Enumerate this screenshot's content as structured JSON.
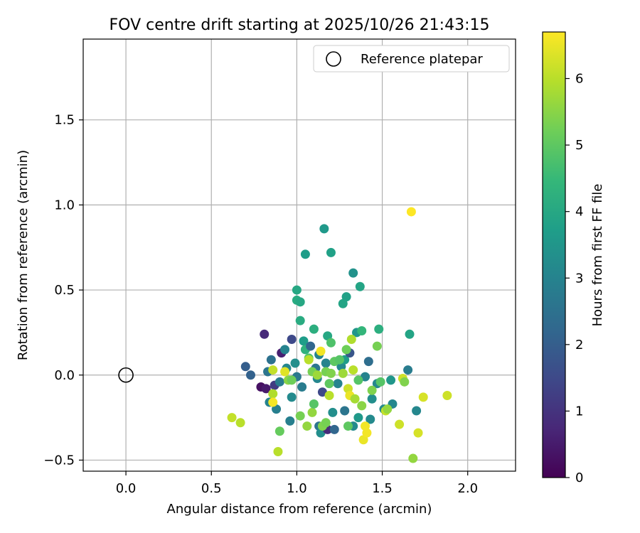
{
  "chart_data": {
    "type": "scatter",
    "title": "FOV centre drift starting at 2025/10/26 21:43:15",
    "xlabel": "Angular distance from reference (arcmin)",
    "ylabel": "Rotation from reference (arcmin)",
    "xlim": [
      -0.25,
      2.28
    ],
    "ylim": [
      -0.565,
      1.975
    ],
    "x_ticks": [
      0.0,
      0.5,
      1.0,
      1.5,
      2.0
    ],
    "x_tick_labels": [
      "0.0",
      "0.5",
      "1.0",
      "1.5",
      "2.0"
    ],
    "y_ticks": [
      -0.5,
      0.0,
      0.5,
      1.0,
      1.5
    ],
    "y_tick_labels": [
      "−0.5",
      "0.0",
      "0.5",
      "1.0",
      "1.5"
    ],
    "grid": true,
    "legend": {
      "label": "Reference platepar",
      "placement": "top-right"
    },
    "reference_point": {
      "x": 0.0,
      "y": 0.0
    },
    "colorbar": {
      "label": "Hours from first FF file",
      "min": 0,
      "max": 6.7,
      "ticks": [
        0,
        1,
        2,
        3,
        4,
        5,
        6
      ],
      "tick_labels": [
        "0",
        "1",
        "2",
        "3",
        "4",
        "5",
        "6"
      ],
      "colormap": [
        "#440154",
        "#482878",
        "#3e4989",
        "#31688e",
        "#26828e",
        "#1f9e89",
        "#35b779",
        "#6ece58",
        "#b5de2b",
        "#fde725"
      ]
    },
    "points": [
      {
        "x": 0.81,
        "y": 0.24,
        "h": 0.8
      },
      {
        "x": 0.7,
        "y": 0.05,
        "h": 2.0
      },
      {
        "x": 0.73,
        "y": 0.0,
        "h": 2.1
      },
      {
        "x": 0.79,
        "y": -0.07,
        "h": 0.3
      },
      {
        "x": 0.82,
        "y": -0.08,
        "h": 0.5
      },
      {
        "x": 0.83,
        "y": 0.02,
        "h": 2.6
      },
      {
        "x": 0.85,
        "y": 0.09,
        "h": 2.5
      },
      {
        "x": 0.84,
        "y": -0.16,
        "h": 3.0
      },
      {
        "x": 0.87,
        "y": -0.06,
        "h": 1.2
      },
      {
        "x": 0.88,
        "y": -0.2,
        "h": 2.9
      },
      {
        "x": 0.9,
        "y": -0.04,
        "h": 2.8
      },
      {
        "x": 0.91,
        "y": 0.13,
        "h": 0.6
      },
      {
        "x": 0.93,
        "y": 0.15,
        "h": 3.0
      },
      {
        "x": 0.94,
        "y": 0.04,
        "h": 3.1
      },
      {
        "x": 0.97,
        "y": 0.21,
        "h": 1.5
      },
      {
        "x": 0.97,
        "y": -0.13,
        "h": 3.2
      },
      {
        "x": 0.96,
        "y": -0.27,
        "h": 2.9
      },
      {
        "x": 0.99,
        "y": 0.07,
        "h": 3.3
      },
      {
        "x": 1.0,
        "y": -0.01,
        "h": 2.7
      },
      {
        "x": 1.03,
        "y": -0.07,
        "h": 2.8
      },
      {
        "x": 1.05,
        "y": 0.71,
        "h": 3.7
      },
      {
        "x": 1.0,
        "y": 0.5,
        "h": 4.0
      },
      {
        "x": 1.0,
        "y": 0.44,
        "h": 4.1
      },
      {
        "x": 1.02,
        "y": 0.43,
        "h": 4.0
      },
      {
        "x": 1.02,
        "y": 0.32,
        "h": 4.1
      },
      {
        "x": 1.04,
        "y": 0.2,
        "h": 3.7
      },
      {
        "x": 1.05,
        "y": 0.15,
        "h": 4.3
      },
      {
        "x": 1.07,
        "y": 0.1,
        "h": 4.8
      },
      {
        "x": 1.08,
        "y": 0.17,
        "h": 2.2
      },
      {
        "x": 1.1,
        "y": 0.27,
        "h": 4.2
      },
      {
        "x": 1.11,
        "y": 0.04,
        "h": 2.6
      },
      {
        "x": 1.12,
        "y": -0.02,
        "h": 3.1
      },
      {
        "x": 1.13,
        "y": 0.12,
        "h": 3.0
      },
      {
        "x": 1.16,
        "y": 0.86,
        "h": 3.6
      },
      {
        "x": 1.2,
        "y": 0.72,
        "h": 3.8
      },
      {
        "x": 1.18,
        "y": 0.23,
        "h": 4.0
      },
      {
        "x": 1.2,
        "y": 0.19,
        "h": 4.8
      },
      {
        "x": 1.17,
        "y": 0.07,
        "h": 3.0
      },
      {
        "x": 1.15,
        "y": -0.1,
        "h": 1.5
      },
      {
        "x": 1.13,
        "y": -0.3,
        "h": 2.6
      },
      {
        "x": 1.14,
        "y": -0.34,
        "h": 3.3
      },
      {
        "x": 1.18,
        "y": -0.32,
        "h": 0.8
      },
      {
        "x": 1.21,
        "y": -0.22,
        "h": 3.3
      },
      {
        "x": 1.22,
        "y": -0.32,
        "h": 2.2
      },
      {
        "x": 1.24,
        "y": -0.05,
        "h": 3.0
      },
      {
        "x": 1.26,
        "y": 0.05,
        "h": 3.2
      },
      {
        "x": 1.28,
        "y": -0.21,
        "h": 2.6
      },
      {
        "x": 1.28,
        "y": 0.09,
        "h": 3.7
      },
      {
        "x": 1.29,
        "y": 0.46,
        "h": 3.8
      },
      {
        "x": 1.27,
        "y": 0.42,
        "h": 3.9
      },
      {
        "x": 1.31,
        "y": 0.13,
        "h": 1.8
      },
      {
        "x": 1.33,
        "y": 0.6,
        "h": 3.4
      },
      {
        "x": 1.35,
        "y": 0.25,
        "h": 3.5
      },
      {
        "x": 1.37,
        "y": 0.52,
        "h": 3.9
      },
      {
        "x": 1.38,
        "y": 0.26,
        "h": 4.4
      },
      {
        "x": 1.33,
        "y": -0.3,
        "h": 3.2
      },
      {
        "x": 1.36,
        "y": -0.25,
        "h": 3.6
      },
      {
        "x": 1.4,
        "y": -0.01,
        "h": 3.0
      },
      {
        "x": 1.42,
        "y": 0.08,
        "h": 2.4
      },
      {
        "x": 1.43,
        "y": -0.26,
        "h": 3.2
      },
      {
        "x": 1.44,
        "y": -0.14,
        "h": 3.3
      },
      {
        "x": 1.47,
        "y": -0.05,
        "h": 3.1
      },
      {
        "x": 1.48,
        "y": 0.27,
        "h": 4.2
      },
      {
        "x": 1.51,
        "y": -0.2,
        "h": 3.2
      },
      {
        "x": 1.56,
        "y": -0.17,
        "h": 3.1
      },
      {
        "x": 1.55,
        "y": -0.03,
        "h": 3.5
      },
      {
        "x": 1.65,
        "y": 0.03,
        "h": 2.8
      },
      {
        "x": 1.66,
        "y": 0.24,
        "h": 3.9
      },
      {
        "x": 1.7,
        "y": -0.21,
        "h": 3.1
      },
      {
        "x": 0.86,
        "y": 0.03,
        "h": 6.1
      },
      {
        "x": 0.86,
        "y": -0.11,
        "h": 5.9
      },
      {
        "x": 0.86,
        "y": -0.16,
        "h": 6.6
      },
      {
        "x": 0.89,
        "y": -0.45,
        "h": 6.0
      },
      {
        "x": 0.9,
        "y": -0.33,
        "h": 5.1
      },
      {
        "x": 0.93,
        "y": 0.02,
        "h": 6.4
      },
      {
        "x": 0.95,
        "y": -0.03,
        "h": 5.5
      },
      {
        "x": 0.97,
        "y": -0.03,
        "h": 5.2
      },
      {
        "x": 1.02,
        "y": -0.24,
        "h": 5.3
      },
      {
        "x": 1.06,
        "y": -0.3,
        "h": 5.6
      },
      {
        "x": 1.07,
        "y": 0.09,
        "h": 6.0
      },
      {
        "x": 1.09,
        "y": -0.22,
        "h": 5.6
      },
      {
        "x": 1.1,
        "y": -0.17,
        "h": 4.9
      },
      {
        "x": 1.09,
        "y": 0.02,
        "h": 5.3
      },
      {
        "x": 1.12,
        "y": 0.0,
        "h": 5.7
      },
      {
        "x": 1.14,
        "y": 0.14,
        "h": 6.6
      },
      {
        "x": 1.15,
        "y": -0.3,
        "h": 5.4
      },
      {
        "x": 1.17,
        "y": -0.28,
        "h": 5.3
      },
      {
        "x": 1.17,
        "y": 0.02,
        "h": 5.3
      },
      {
        "x": 1.19,
        "y": -0.12,
        "h": 6.0
      },
      {
        "x": 1.19,
        "y": -0.05,
        "h": 5.0
      },
      {
        "x": 1.2,
        "y": 0.01,
        "h": 5.4
      },
      {
        "x": 1.22,
        "y": 0.08,
        "h": 5.0
      },
      {
        "x": 1.25,
        "y": 0.09,
        "h": 4.9
      },
      {
        "x": 1.27,
        "y": 0.01,
        "h": 5.7
      },
      {
        "x": 1.29,
        "y": 0.15,
        "h": 5.2
      },
      {
        "x": 1.3,
        "y": -0.08,
        "h": 6.2
      },
      {
        "x": 1.3,
        "y": -0.3,
        "h": 5.0
      },
      {
        "x": 1.31,
        "y": -0.12,
        "h": 6.5
      },
      {
        "x": 1.32,
        "y": 0.21,
        "h": 5.9
      },
      {
        "x": 1.33,
        "y": 0.03,
        "h": 6.0
      },
      {
        "x": 1.34,
        "y": -0.14,
        "h": 5.8
      },
      {
        "x": 1.36,
        "y": -0.03,
        "h": 4.9
      },
      {
        "x": 1.38,
        "y": -0.18,
        "h": 5.5
      },
      {
        "x": 1.39,
        "y": -0.38,
        "h": 6.5
      },
      {
        "x": 1.4,
        "y": -0.3,
        "h": 6.6
      },
      {
        "x": 1.41,
        "y": -0.34,
        "h": 6.6
      },
      {
        "x": 1.44,
        "y": -0.09,
        "h": 5.4
      },
      {
        "x": 1.47,
        "y": 0.17,
        "h": 5.3
      },
      {
        "x": 1.49,
        "y": -0.04,
        "h": 4.9
      },
      {
        "x": 1.52,
        "y": -0.21,
        "h": 6.1
      },
      {
        "x": 1.53,
        "y": -0.2,
        "h": 5.6
      },
      {
        "x": 1.6,
        "y": -0.29,
        "h": 6.2
      },
      {
        "x": 1.62,
        "y": -0.02,
        "h": 6.2
      },
      {
        "x": 1.63,
        "y": -0.04,
        "h": 5.4
      },
      {
        "x": 1.67,
        "y": 0.96,
        "h": 6.7
      },
      {
        "x": 1.68,
        "y": -0.49,
        "h": 5.6
      },
      {
        "x": 1.71,
        "y": -0.34,
        "h": 6.3
      },
      {
        "x": 1.74,
        "y": -0.13,
        "h": 6.3
      },
      {
        "x": 1.88,
        "y": -0.12,
        "h": 6.2
      },
      {
        "x": 0.62,
        "y": -0.25,
        "h": 6.1
      },
      {
        "x": 0.67,
        "y": -0.28,
        "h": 6.0
      }
    ]
  }
}
